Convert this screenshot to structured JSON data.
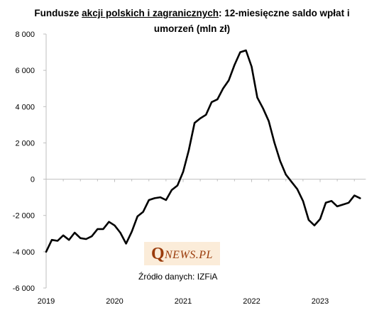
{
  "chart_data": {
    "type": "line",
    "title_line1_pre": "Fundusze ",
    "title_line1_underlined": "akcji polskich i zagranicznych",
    "title_line1_post": ": 12-miesięczne saldo wpłat i",
    "title_line2": "umorzeń (mln zł)",
    "xlabel": "",
    "ylabel": "",
    "x_range": [
      "2019-01",
      "2023-09"
    ],
    "ylim": [
      -6000,
      8000
    ],
    "y_ticks": [
      8000,
      6000,
      4000,
      2000,
      0,
      -2000,
      -4000,
      -6000
    ],
    "y_tick_labels": [
      "8 000",
      "6 000",
      "4 000",
      "2 000",
      "0",
      "-2 000",
      "-4 000",
      "-6 000"
    ],
    "x_ticks": [
      "2019-01",
      "2020-01",
      "2021-01",
      "2022-01",
      "2023-01"
    ],
    "x_tick_labels": [
      "2019",
      "2020",
      "2021",
      "2022",
      "2023"
    ],
    "grid": false,
    "series": [
      {
        "color": "#000000",
        "points": [
          [
            "2019-01",
            -4000
          ],
          [
            "2019-02",
            -3350
          ],
          [
            "2019-03",
            -3400
          ],
          [
            "2019-04",
            -3100
          ],
          [
            "2019-05",
            -3350
          ],
          [
            "2019-06",
            -2950
          ],
          [
            "2019-07",
            -3250
          ],
          [
            "2019-08",
            -3300
          ],
          [
            "2019-09",
            -3150
          ],
          [
            "2019-10",
            -2750
          ],
          [
            "2019-11",
            -2750
          ],
          [
            "2019-12",
            -2350
          ],
          [
            "2020-01",
            -2550
          ],
          [
            "2020-02",
            -2950
          ],
          [
            "2020-03",
            -3550
          ],
          [
            "2020-04",
            -2900
          ],
          [
            "2020-05",
            -2050
          ],
          [
            "2020-06",
            -1800
          ],
          [
            "2020-07",
            -1150
          ],
          [
            "2020-08",
            -1050
          ],
          [
            "2020-09",
            -1000
          ],
          [
            "2020-10",
            -1150
          ],
          [
            "2020-11",
            -600
          ],
          [
            "2020-12",
            -350
          ],
          [
            "2021-01",
            400
          ],
          [
            "2021-02",
            1600
          ],
          [
            "2021-03",
            3100
          ],
          [
            "2021-04",
            3350
          ],
          [
            "2021-05",
            3550
          ],
          [
            "2021-06",
            4250
          ],
          [
            "2021-07",
            4400
          ],
          [
            "2021-08",
            5000
          ],
          [
            "2021-09",
            5450
          ],
          [
            "2021-10",
            6300
          ],
          [
            "2021-11",
            7000
          ],
          [
            "2021-12",
            7100
          ],
          [
            "2022-01",
            6200
          ],
          [
            "2022-02",
            4500
          ],
          [
            "2022-03",
            3900
          ],
          [
            "2022-04",
            3200
          ],
          [
            "2022-05",
            2000
          ],
          [
            "2022-06",
            1000
          ],
          [
            "2022-07",
            250
          ],
          [
            "2022-08",
            -150
          ],
          [
            "2022-09",
            -550
          ],
          [
            "2022-10",
            -1200
          ],
          [
            "2022-11",
            -2250
          ],
          [
            "2022-12",
            -2550
          ],
          [
            "2023-01",
            -2200
          ],
          [
            "2023-02",
            -1300
          ],
          [
            "2023-03",
            -1200
          ],
          [
            "2023-04",
            -1500
          ],
          [
            "2023-05",
            -1400
          ],
          [
            "2023-06",
            -1300
          ],
          [
            "2023-07",
            -900
          ],
          [
            "2023-08",
            -1050
          ]
        ]
      }
    ]
  },
  "logo": {
    "big_letter": "Q",
    "rest_text": "NEWS.PL",
    "bg_color": "#fbecd9",
    "text_color": "#9a3b0b"
  },
  "source_text": "Źródło danych: IZFiA"
}
